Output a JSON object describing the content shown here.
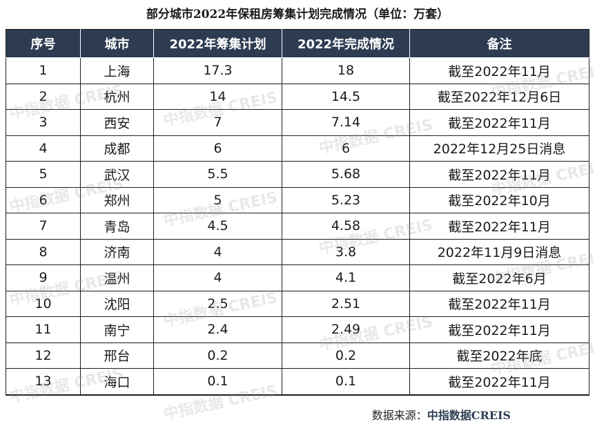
{
  "title": "部分城市2022年保租房筹集计划完成情况（单位：万套）",
  "table": {
    "headers": [
      "序号",
      "城市",
      "2022年筹集计划",
      "2022年完成情况",
      "备注"
    ],
    "rows": [
      [
        "1",
        "上海",
        "17.3",
        "18",
        "截至2022年11月"
      ],
      [
        "2",
        "杭州",
        "14",
        "14.5",
        "截至2022年12月6日"
      ],
      [
        "3",
        "西安",
        "7",
        "7.14",
        "截至2022年11月"
      ],
      [
        "4",
        "成都",
        "6",
        "6",
        "2022年12月25日消息"
      ],
      [
        "5",
        "武汉",
        "5.5",
        "5.68",
        "截至2022年11月"
      ],
      [
        "6",
        "郑州",
        "5",
        "5.23",
        "截至2022年10月"
      ],
      [
        "7",
        "青岛",
        "4.5",
        "4.58",
        "截至2022年11月"
      ],
      [
        "8",
        "济南",
        "4",
        "3.8",
        "2022年11月9日消息"
      ],
      [
        "9",
        "温州",
        "4",
        "4.1",
        "截至2022年6月"
      ],
      [
        "10",
        "沈阳",
        "2.5",
        "2.51",
        "截至2022年11月"
      ],
      [
        "11",
        "南宁",
        "2.4",
        "2.49",
        "截至2022年11月"
      ],
      [
        "12",
        "邢台",
        "0.2",
        "0.2",
        "截至2022年底"
      ],
      [
        "13",
        "海口",
        "0.1",
        "0.1",
        "截至2022年11月"
      ]
    ]
  },
  "source": {
    "label": "数据来源：",
    "brand": "中指数据CREIS"
  },
  "watermark": "中指数据 CREIS"
}
